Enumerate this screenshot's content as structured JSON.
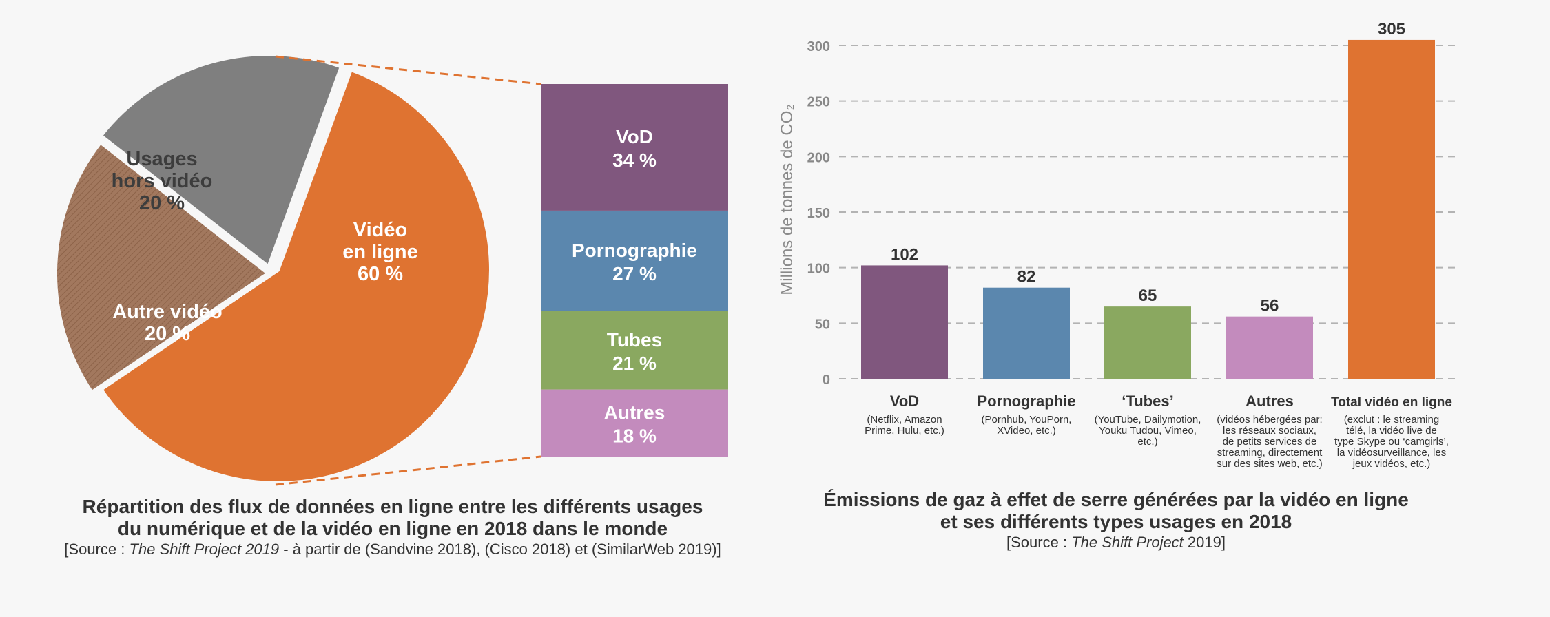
{
  "colors": {
    "video": "#df7331",
    "hors_video": "#7f7f7f",
    "autre_video": "#a2785e",
    "vod": "#80577e",
    "porno": "#5b87ae",
    "tubes": "#8aa860",
    "autres": "#c38bbd",
    "total": "#df7331",
    "background": "#f7f7f7"
  },
  "chart_data": [
    {
      "type": "pie",
      "title_line1": "Répartition des flux de données en ligne entre les différents usages",
      "title_line2": "du numérique et de la vidéo en ligne en 2018 dans le monde",
      "source_prefix": "[Source : ",
      "source_italic": "The Shift Project 2019",
      "source_suffix": " - à partir de (Sandvine 2018), (Cisco 2018) et (SimilarWeb 2019)]",
      "slices": [
        {
          "label_lines": [
            "Vidéo",
            "en ligne",
            "60 %"
          ],
          "value": 60,
          "color": "#df7331"
        },
        {
          "label_lines": [
            "Autre vidéo",
            "20 %"
          ],
          "value": 20,
          "color": "#a2785e",
          "hatched": true
        },
        {
          "label_lines": [
            "Usages",
            "hors vidéo",
            "20 %"
          ],
          "value": 20,
          "color": "#7f7f7f"
        }
      ],
      "breakdown": {
        "of": "Vidéo en ligne",
        "segments": [
          {
            "name": "VoD",
            "pct_label": "34 %",
            "value": 34,
            "color": "#80577e"
          },
          {
            "name": "Pornographie",
            "pct_label": "27 %",
            "value": 27,
            "color": "#5b87ae"
          },
          {
            "name": "Tubes",
            "pct_label": "21 %",
            "value": 21,
            "color": "#8aa860"
          },
          {
            "name": "Autres",
            "pct_label": "18 %",
            "value": 18,
            "color": "#c38bbd"
          }
        ]
      }
    },
    {
      "type": "bar",
      "title_line1": "Émissions de gaz à effet de serre générées par la vidéo en ligne",
      "title_line2": "et ses différents types usages en 2018",
      "source_prefix": "[Source : ",
      "source_italic": "The Shift Project",
      "source_suffix": " 2019]",
      "ylabel": "Millions de tonnes de CO₂",
      "ylim": [
        0,
        300
      ],
      "yticks": [
        0,
        50,
        100,
        150,
        200,
        250,
        300
      ],
      "grid": true,
      "bars": [
        {
          "name": "VoD",
          "value": 102,
          "color": "#80577e",
          "desc_lines": [
            "(Netflix, Amazon",
            "Prime, Hulu, etc.)"
          ]
        },
        {
          "name": "Pornographie",
          "value": 82,
          "color": "#5b87ae",
          "desc_lines": [
            "(Pornhub, YouPorn,",
            "XVideo, etc.)"
          ]
        },
        {
          "name": "‘Tubes’",
          "value": 65,
          "color": "#8aa860",
          "desc_lines": [
            "(YouTube, Dailymotion,",
            "Youku Tudou, Vimeo,",
            "etc.)"
          ]
        },
        {
          "name": "Autres",
          "value": 56,
          "color": "#c38bbd",
          "desc_lines": [
            "(vidéos hébergées par:",
            "les réseaux sociaux,",
            "de petits services de",
            "streaming, directement",
            "sur des sites web, etc.)"
          ]
        },
        {
          "name": "Total vidéo en ligne",
          "value": 305,
          "color": "#df7331",
          "small_name": true,
          "desc_lines": [
            "(exclut : le streaming",
            "télé, la vidéo live de",
            "type Skype ou ‘camgirls’,",
            "la vidéosurveillance, les",
            "jeux vidéos, etc.)"
          ]
        }
      ]
    }
  ]
}
